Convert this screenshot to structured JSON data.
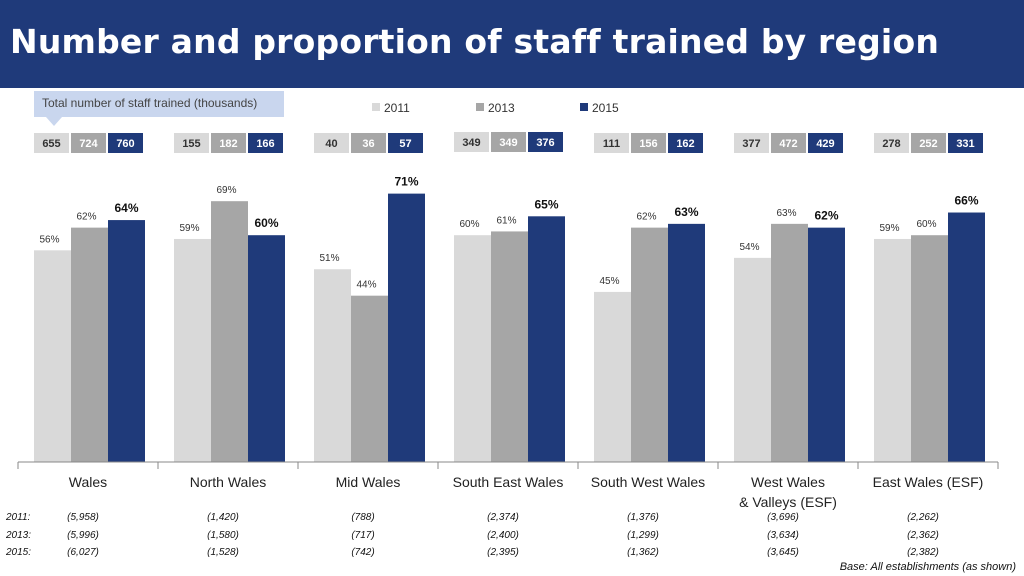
{
  "header": {
    "title": "Number and proportion of staff trained by region"
  },
  "callout": {
    "text": "Total number of staff trained (thousands)"
  },
  "colors": {
    "2011": "#d9d9d9",
    "2013": "#a6a6a6",
    "2015": "#1f3a7a",
    "title_bg": "#1f3a7a"
  },
  "chart_data": {
    "type": "bar",
    "categories": [
      "Wales",
      "North Wales",
      "Mid Wales",
      "South East Wales",
      "South West Wales",
      "West Wales\n& Valleys (ESF)",
      "East Wales (ESF)"
    ],
    "series": [
      {
        "name": "2011",
        "values": [
          56,
          59,
          51,
          60,
          45,
          54,
          59
        ],
        "labels": [
          "56%",
          "59%",
          "51%",
          "60%",
          "45%",
          "54%",
          "59%"
        ]
      },
      {
        "name": "2013",
        "values": [
          62,
          69,
          44,
          61,
          62,
          63,
          60
        ],
        "labels": [
          "62%",
          "69%",
          "44%",
          "61%",
          "62%",
          "63%",
          "60%"
        ]
      },
      {
        "name": "2015",
        "values": [
          64,
          60,
          71,
          65,
          63,
          62,
          66
        ],
        "labels": [
          "64%",
          "60%",
          "71%",
          "65%",
          "63%",
          "62%",
          "66%"
        ]
      }
    ],
    "totals_thousands": [
      [
        "655",
        "724",
        "760"
      ],
      [
        "155",
        "182",
        "166"
      ],
      [
        "40",
        "36",
        "57"
      ],
      [
        "349",
        "349",
        "376"
      ],
      [
        "111",
        "156",
        "162"
      ],
      [
        "377",
        "472",
        "429"
      ],
      [
        "278",
        "252",
        "331"
      ]
    ],
    "ylim": [
      0,
      100
    ],
    "legend_position": "top"
  },
  "bases": {
    "rows": [
      {
        "label": "2011:",
        "values": [
          "(5,958)",
          "(1,420)",
          "(788)",
          "(2,374)",
          "(1,376)",
          "(3,696)",
          "(2,262)"
        ]
      },
      {
        "label": "2013:",
        "values": [
          "(5,996)",
          "(1,580)",
          "(717)",
          "(2,400)",
          "(1,299)",
          "(3,634)",
          "(2,362)"
        ]
      },
      {
        "label": "2015:",
        "values": [
          "(6,027)",
          "(1,528)",
          "(742)",
          "(2,395)",
          "(1,362)",
          "(3,645)",
          "(2,382)"
        ]
      }
    ],
    "note": "Base: All establishments (as shown)"
  }
}
